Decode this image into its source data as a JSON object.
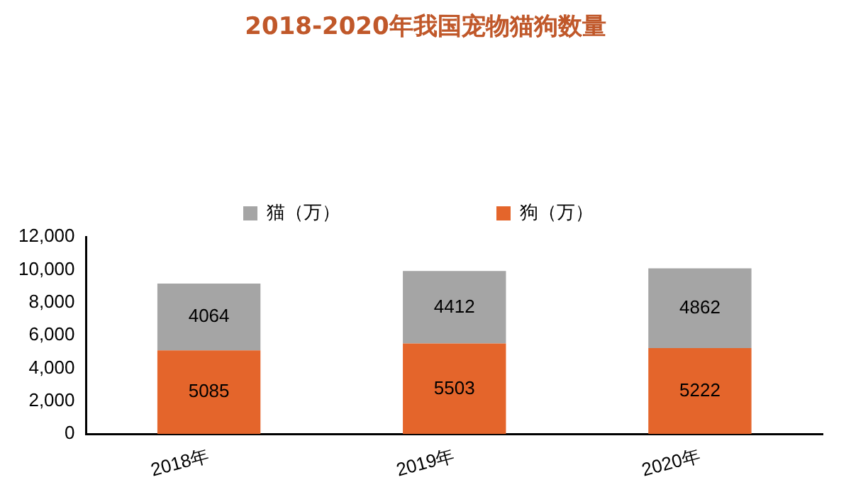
{
  "chart_data": {
    "type": "bar",
    "title": "2018-2020年我国宠物猫狗数量",
    "categories": [
      "2018年",
      "2019年",
      "2020年"
    ],
    "stacked": true,
    "data_labels": true,
    "legend": "top",
    "grid": false,
    "series": [
      {
        "name": "狗（万）",
        "color": "#e4652b",
        "values": [
          5085,
          5503,
          5222
        ]
      },
      {
        "name": "猫（万）",
        "color": "#a5a5a5",
        "values": [
          4064,
          4412,
          4862
        ]
      }
    ],
    "ylim": [
      0,
      12000
    ],
    "yticks": [
      0,
      {
        "value": 2000,
        "label": "2,000"
      },
      {
        "value": 4000,
        "label": "4,000"
      },
      {
        "value": 6000,
        "label": "6,000"
      },
      {
        "value": 8000,
        "label": "8,000"
      },
      {
        "value": 10000,
        "label": "10,000"
      },
      {
        "value": 12000,
        "label": "12,000"
      }
    ]
  }
}
